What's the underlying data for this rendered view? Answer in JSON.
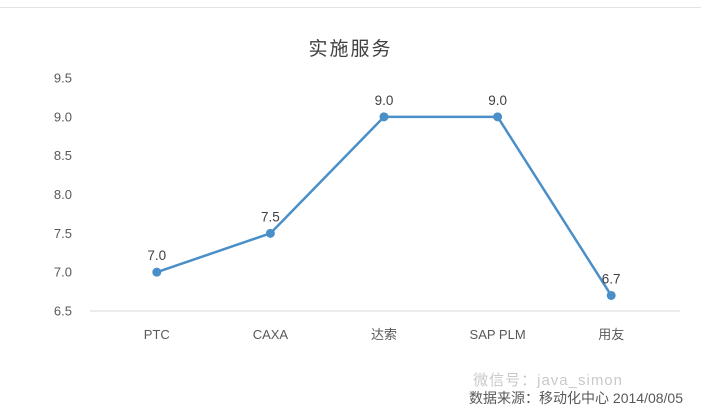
{
  "title": "实施服务",
  "footer": {
    "source": "数据来源：移动化中心 2014/08/05",
    "watermark": "微信号：java_simon"
  },
  "colors": {
    "line": "#4a8fc7",
    "marker": "#4a8fc7",
    "axis": "#d9d9d9",
    "tick_text": "#595959",
    "label_text": "#404040",
    "title_text": "#404040"
  },
  "chart_data": {
    "type": "line",
    "title": "实施服务",
    "categories": [
      "PTC",
      "CAXA",
      "达索",
      "SAP PLM",
      "用友"
    ],
    "values": [
      7.0,
      7.5,
      9.0,
      9.0,
      6.7
    ],
    "labels": [
      "7.0",
      "7.5",
      "9.0",
      "9.0",
      "6.7"
    ],
    "xlabel": "",
    "ylabel": "",
    "ylim": [
      6.5,
      9.5
    ],
    "ytick_step": 0.5,
    "yticks": [
      "6.5",
      "7.0",
      "7.5",
      "8.0",
      "8.5",
      "9.0",
      "9.5"
    ],
    "grid": false,
    "legend": "none",
    "marker": "circle",
    "annotation": "数据来源：移动化中心 2014/08/05"
  }
}
